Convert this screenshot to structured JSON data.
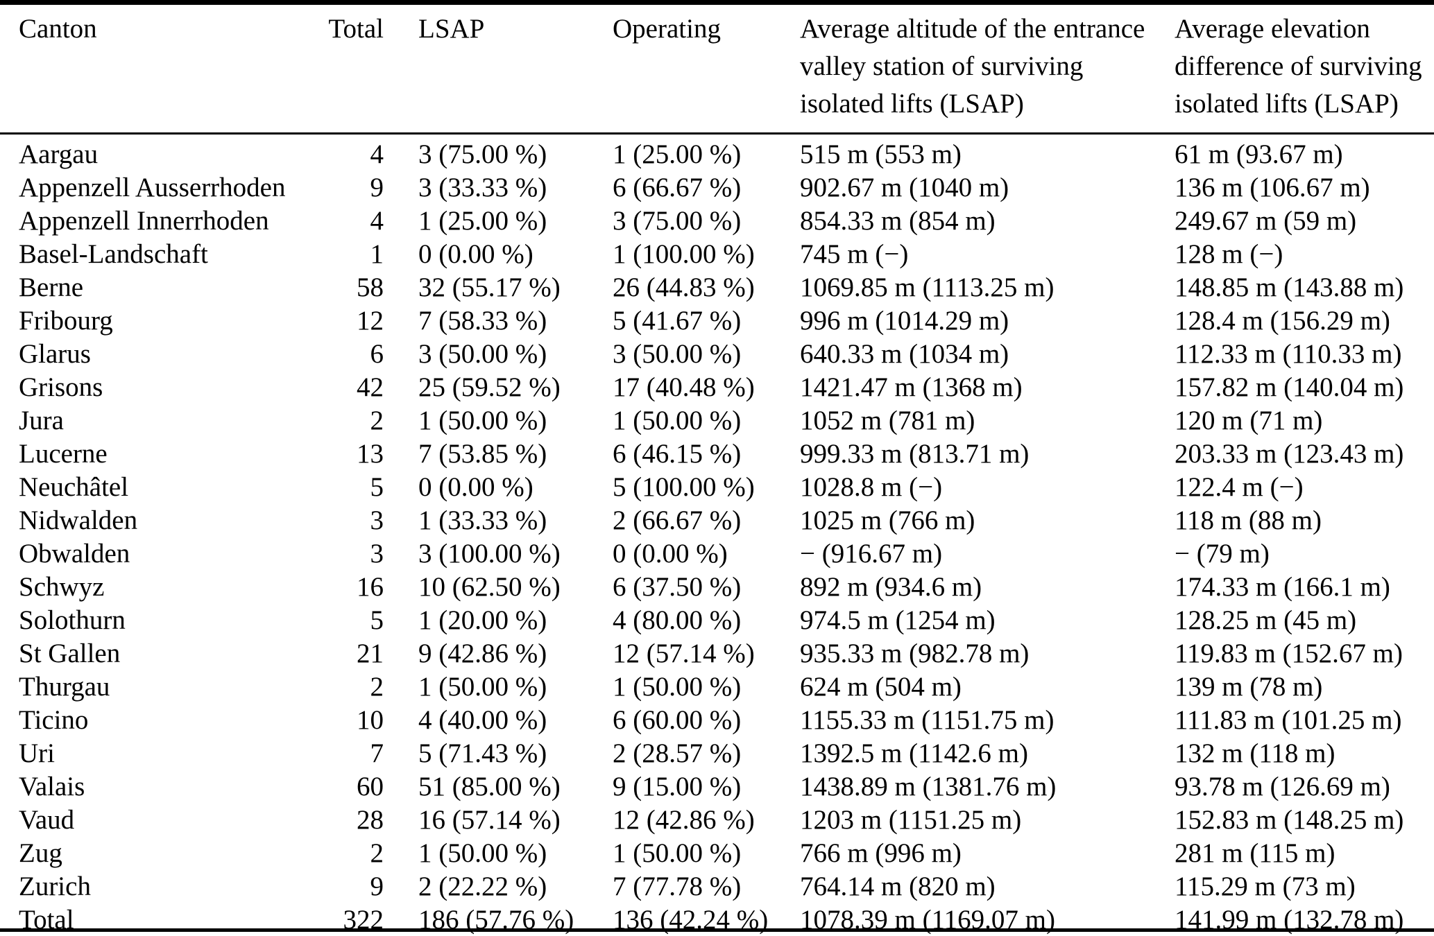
{
  "colors": {
    "background": "#ffffff",
    "text": "#000000",
    "rule": "#000000"
  },
  "table": {
    "columns": [
      {
        "key": "canton",
        "label": "Canton"
      },
      {
        "key": "total",
        "label": "Total"
      },
      {
        "key": "lsap",
        "label": "LSAP"
      },
      {
        "key": "operating",
        "label": "Operating"
      },
      {
        "key": "altitude",
        "label": "Average altitude of the entrance valley station of surviving isolated lifts (LSAP)"
      },
      {
        "key": "elevation",
        "label": "Average elevation difference of surviving isolated lifts (LSAP)"
      }
    ],
    "rows": [
      [
        "Aargau",
        "4",
        "3 (75.00 %)",
        "1 (25.00 %)",
        "515 m (553 m)",
        "61 m (93.67 m)"
      ],
      [
        "Appenzell Ausserrhoden",
        "9",
        "3 (33.33 %)",
        "6 (66.67 %)",
        "902.67 m (1040 m)",
        "136 m (106.67 m)"
      ],
      [
        "Appenzell Innerrhoden",
        "4",
        "1 (25.00 %)",
        "3 (75.00 %)",
        "854.33 m (854 m)",
        "249.67 m (59 m)"
      ],
      [
        "Basel-Landschaft",
        "1",
        "0 (0.00 %)",
        "1 (100.00 %)",
        "745 m (−)",
        "128 m (−)"
      ],
      [
        "Berne",
        "58",
        "32 (55.17 %)",
        "26 (44.83 %)",
        "1069.85 m (1113.25 m)",
        "148.85 m (143.88 m)"
      ],
      [
        "Fribourg",
        "12",
        "7 (58.33 %)",
        "5 (41.67 %)",
        "996 m (1014.29 m)",
        "128.4 m (156.29 m)"
      ],
      [
        "Glarus",
        "6",
        "3 (50.00 %)",
        "3 (50.00 %)",
        "640.33 m (1034 m)",
        "112.33 m (110.33 m)"
      ],
      [
        "Grisons",
        "42",
        "25 (59.52 %)",
        "17 (40.48 %)",
        "1421.47 m (1368 m)",
        "157.82 m (140.04 m)"
      ],
      [
        "Jura",
        "2",
        "1 (50.00 %)",
        "1 (50.00 %)",
        "1052 m (781 m)",
        "120 m (71 m)"
      ],
      [
        "Lucerne",
        "13",
        "7 (53.85 %)",
        "6 (46.15 %)",
        "999.33 m (813.71 m)",
        "203.33 m (123.43 m)"
      ],
      [
        "Neuchâtel",
        "5",
        "0 (0.00 %)",
        "5 (100.00 %)",
        "1028.8 m (−)",
        "122.4 m (−)"
      ],
      [
        "Nidwalden",
        "3",
        "1 (33.33 %)",
        "2 (66.67 %)",
        "1025 m (766 m)",
        "118 m (88 m)"
      ],
      [
        "Obwalden",
        "3",
        "3 (100.00 %)",
        "0 (0.00 %)",
        "− (916.67 m)",
        "− (79 m)"
      ],
      [
        "Schwyz",
        "16",
        "10 (62.50 %)",
        "6 (37.50 %)",
        "892 m (934.6 m)",
        "174.33 m (166.1 m)"
      ],
      [
        "Solothurn",
        "5",
        "1 (20.00 %)",
        "4 (80.00 %)",
        "974.5 m (1254 m)",
        "128.25 m (45 m)"
      ],
      [
        "St Gallen",
        "21",
        "9 (42.86 %)",
        "12 (57.14 %)",
        "935.33 m (982.78 m)",
        "119.83 m (152.67 m)"
      ],
      [
        "Thurgau",
        "2",
        "1 (50.00 %)",
        "1 (50.00 %)",
        "624 m (504 m)",
        "139 m (78 m)"
      ],
      [
        "Ticino",
        "10",
        "4 (40.00 %)",
        "6 (60.00 %)",
        "1155.33 m (1151.75 m)",
        "111.83 m (101.25 m)"
      ],
      [
        "Uri",
        "7",
        "5 (71.43 %)",
        "2 (28.57 %)",
        "1392.5 m (1142.6 m)",
        "132 m (118 m)"
      ],
      [
        "Valais",
        "60",
        "51 (85.00 %)",
        "9 (15.00 %)",
        "1438.89 m (1381.76 m)",
        "93.78 m (126.69 m)"
      ],
      [
        "Vaud",
        "28",
        "16 (57.14 %)",
        "12 (42.86 %)",
        "1203 m (1151.25 m)",
        "152.83 m (148.25 m)"
      ],
      [
        "Zug",
        "2",
        "1 (50.00 %)",
        "1 (50.00 %)",
        "766 m (996 m)",
        "281 m (115 m)"
      ],
      [
        "Zurich",
        "9",
        "2 (22.22 %)",
        "7 (77.78 %)",
        "764.14 m (820 m)",
        "115.29 m (73 m)"
      ],
      [
        "Total",
        "322",
        "186 (57.76 %)",
        "136 (42.24 %)",
        "1078.39 m (1169.07 m)",
        "141.99 m (132.78 m)"
      ]
    ]
  }
}
